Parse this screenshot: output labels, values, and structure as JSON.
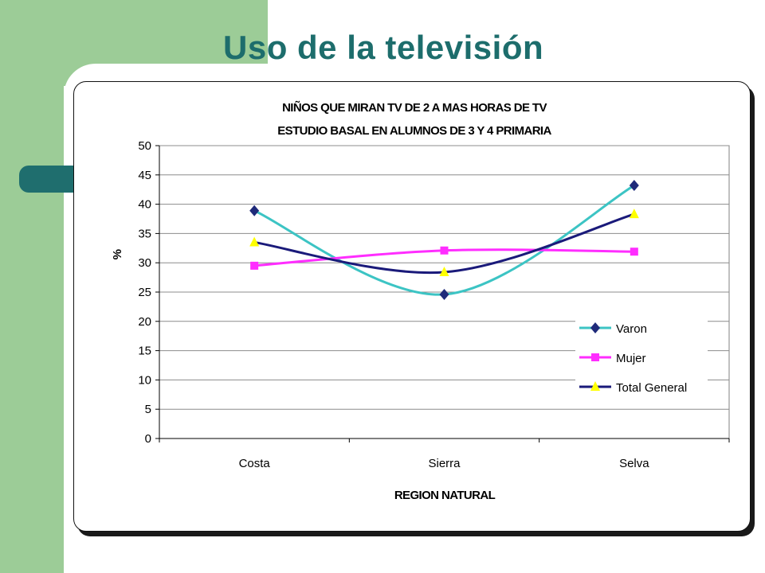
{
  "slide": {
    "title": "Uso de la televisión"
  },
  "chart_data": {
    "type": "line",
    "title": "NIÑOS QUE MIRAN TV DE 2 A MAS HORAS DE TV",
    "subtitle": "ESTUDIO BASAL EN ALUMNOS DE 3 Y 4 PRIMARIA",
    "xlabel": "REGION NATURAL",
    "ylabel": "%",
    "categories": [
      "Costa",
      "Sierra",
      "Selva"
    ],
    "ylim": [
      0,
      50
    ],
    "yticks": [
      0,
      5,
      10,
      15,
      20,
      25,
      30,
      35,
      40,
      45,
      50
    ],
    "grid": true,
    "smooth": true,
    "legend_position": "right",
    "series": [
      {
        "name": "Varon",
        "values": [
          38.9,
          24.6,
          43.2
        ],
        "color": "#3cc4c4",
        "marker": "diamond",
        "marker_color": "#1f2a7a"
      },
      {
        "name": "Mujer",
        "values": [
          29.5,
          32.1,
          31.9
        ],
        "color": "#ff2dff",
        "marker": "square",
        "marker_color": "#ff2dff"
      },
      {
        "name": "Total General",
        "values": [
          33.5,
          28.4,
          38.3
        ],
        "color": "#1a1a7a",
        "marker": "triangle",
        "marker_color": "#ffff00"
      }
    ]
  }
}
